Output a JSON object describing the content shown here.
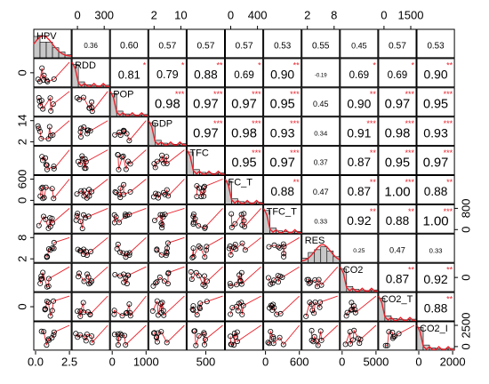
{
  "chart_data": {
    "type": "scatter",
    "variables": [
      "HPV",
      "RDD",
      "POP",
      "GDP",
      "TFC",
      "FC_T",
      "TFC_T",
      "RES",
      "CO2",
      "CO2_T",
      "CO2_I"
    ],
    "correlations": [
      [
        null,
        0.36,
        0.6,
        0.57,
        0.57,
        0.57,
        0.53,
        0.55,
        0.45,
        0.57,
        0.53
      ],
      [
        null,
        null,
        0.81,
        0.79,
        0.88,
        0.69,
        0.9,
        -0.19,
        0.69,
        0.69,
        0.9
      ],
      [
        null,
        null,
        null,
        0.98,
        0.97,
        0.97,
        0.95,
        0.45,
        0.9,
        0.97,
        0.95
      ],
      [
        null,
        null,
        null,
        null,
        0.97,
        0.98,
        0.93,
        0.34,
        0.91,
        0.98,
        0.93
      ],
      [
        null,
        null,
        null,
        null,
        null,
        0.95,
        0.97,
        0.37,
        0.87,
        0.95,
        0.97
      ],
      [
        null,
        null,
        null,
        null,
        null,
        null,
        0.88,
        0.47,
        0.87,
        1.0,
        0.88
      ],
      [
        null,
        null,
        null,
        null,
        null,
        null,
        null,
        0.33,
        0.92,
        0.88,
        1.0
      ],
      [
        null,
        null,
        null,
        null,
        null,
        null,
        null,
        null,
        0.25,
        0.47,
        0.33
      ],
      [
        null,
        null,
        null,
        null,
        null,
        null,
        null,
        null,
        null,
        0.87,
        0.92
      ],
      [
        null,
        null,
        null,
        null,
        null,
        null,
        null,
        null,
        null,
        null,
        0.88
      ],
      [
        null,
        null,
        null,
        null,
        null,
        null,
        null,
        null,
        null,
        null,
        null
      ]
    ],
    "correlation_labels": [
      [
        null,
        "0.36",
        "0.60",
        "0.57",
        "0.57",
        "0.57",
        "0.53",
        "0.55",
        "0.45",
        "0.57",
        "0.53"
      ],
      [
        null,
        null,
        "0.81",
        "0.79",
        "0.88",
        "0.69",
        "0.90",
        "-0.19",
        "0.69",
        "0.69",
        "0.90"
      ],
      [
        null,
        null,
        null,
        "0.98",
        "0.97",
        "0.97",
        "0.95",
        "0.45",
        "0.90",
        "0.97",
        "0.95"
      ],
      [
        null,
        null,
        null,
        null,
        "0.97",
        "0.98",
        "0.93",
        "0.34",
        "0.91",
        "0.98",
        "0.93"
      ],
      [
        null,
        null,
        null,
        null,
        null,
        "0.95",
        "0.97",
        "0.37",
        "0.87",
        "0.95",
        "0.97"
      ],
      [
        null,
        null,
        null,
        null,
        null,
        null,
        "0.88",
        "0.47",
        "0.87",
        "1.00",
        "0.88"
      ],
      [
        null,
        null,
        null,
        null,
        null,
        null,
        null,
        "0.33",
        "0.92",
        "0.88",
        "1.00"
      ],
      [
        null,
        null,
        null,
        null,
        null,
        null,
        null,
        null,
        "0.25",
        "0.47",
        "0.33"
      ],
      [
        null,
        null,
        null,
        null,
        null,
        null,
        null,
        null,
        null,
        "0.87",
        "0.92"
      ],
      [
        null,
        null,
        null,
        null,
        null,
        null,
        null,
        null,
        null,
        null,
        "0.88"
      ],
      [
        null,
        null,
        null,
        null,
        null,
        null,
        null,
        null,
        null,
        null,
        null
      ]
    ],
    "significance": [
      [
        null,
        "",
        "",
        "",
        "",
        "",
        "",
        "",
        "",
        "",
        ""
      ],
      [
        null,
        null,
        "*",
        "*",
        "**",
        "*",
        "**",
        "",
        "*",
        "*",
        "**"
      ],
      [
        null,
        null,
        null,
        "***",
        "***",
        "***",
        "***",
        "",
        "**",
        "***",
        "***"
      ],
      [
        null,
        null,
        null,
        null,
        "***",
        "***",
        "***",
        "",
        "***",
        "***",
        "***"
      ],
      [
        null,
        null,
        null,
        null,
        null,
        "***",
        "***",
        "",
        "**",
        "***",
        "***"
      ],
      [
        null,
        null,
        null,
        null,
        null,
        null,
        "**",
        "",
        "**",
        "***",
        "**"
      ],
      [
        null,
        null,
        null,
        null,
        null,
        null,
        null,
        "",
        "**",
        "**",
        "***"
      ],
      [
        null,
        null,
        null,
        null,
        null,
        null,
        null,
        null,
        "",
        "",
        ""
      ],
      [
        null,
        null,
        null,
        null,
        null,
        null,
        null,
        null,
        null,
        "**",
        "**"
      ],
      [
        null,
        null,
        null,
        null,
        null,
        null,
        null,
        null,
        null,
        null,
        "**"
      ],
      [
        null,
        null,
        null,
        null,
        null,
        null,
        null,
        null,
        null,
        null,
        null
      ]
    ],
    "top_axis": [
      {
        "column": 1,
        "ticks": [
          "0",
          "300"
        ]
      },
      {
        "column": 3,
        "ticks": [
          "2",
          "10"
        ]
      },
      {
        "column": 5,
        "ticks": [
          "0",
          "400"
        ]
      },
      {
        "column": 7,
        "ticks": [
          "2",
          "8"
        ]
      },
      {
        "column": 9,
        "ticks": [
          "0",
          "1500"
        ]
      }
    ],
    "bottom_axis": [
      {
        "column": 0,
        "ticks": [
          "0.0",
          "2.5"
        ]
      },
      {
        "column": 2,
        "ticks": [
          "0",
          "1000"
        ]
      },
      {
        "column": 4,
        "ticks": [
          "500"
        ]
      },
      {
        "column": 6,
        "ticks": [
          "0",
          "600"
        ]
      },
      {
        "column": 8,
        "ticks": [
          "0",
          "5000"
        ]
      },
      {
        "column": 10,
        "ticks": [
          "0",
          "2000"
        ]
      }
    ],
    "left_axis": [
      {
        "row": 1,
        "ticks": [
          "0"
        ]
      },
      {
        "row": 3,
        "ticks": [
          "2",
          "14"
        ]
      },
      {
        "row": 5,
        "ticks": [
          "0",
          "600"
        ]
      },
      {
        "row": 7,
        "ticks": [
          "2",
          "8"
        ]
      },
      {
        "row": 9,
        "ticks": [
          "0"
        ]
      }
    ],
    "right_axis": [
      {
        "row": 6,
        "ticks": [
          "0",
          "800"
        ]
      },
      {
        "row": 8,
        "ticks": [
          "0"
        ]
      },
      {
        "row": 10,
        "ticks": [
          "0",
          "2500"
        ]
      }
    ],
    "point_color": "#000000",
    "fit_color": "#e8202a",
    "histogram_color": "#c8c8c8",
    "density_color": "#e8202a",
    "star_color": "#e8202a"
  }
}
